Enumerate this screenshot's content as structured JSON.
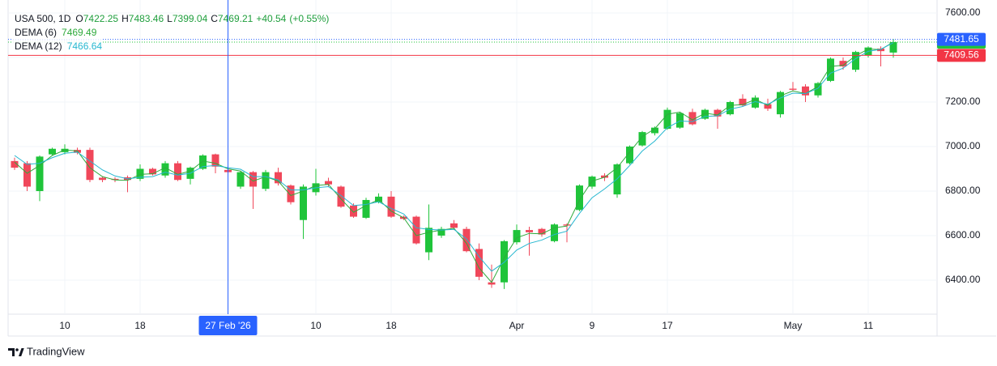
{
  "chart_data": {
    "type": "candlestick",
    "symbol": "USA 500, 1D",
    "ohlc_prefixes": [
      "O",
      "H",
      "L",
      "C"
    ],
    "change": {
      "value": 40.54,
      "label": "+40.54"
    },
    "change_pct": {
      "value": 0.55,
      "label": "(+0.55%)"
    },
    "categories": [
      null,
      null,
      null,
      null,
      "10",
      null,
      null,
      null,
      null,
      null,
      "18",
      null,
      null,
      null,
      null,
      null,
      null,
      null,
      null,
      null,
      null,
      null,
      null,
      null,
      "10",
      null,
      null,
      null,
      null,
      null,
      "18",
      null,
      null,
      null,
      null,
      null,
      null,
      null,
      null,
      null,
      "Apr",
      null,
      null,
      null,
      null,
      null,
      "9",
      null,
      null,
      null,
      null,
      null,
      "17",
      null,
      null,
      null,
      null,
      null,
      null,
      null,
      null,
      null,
      "May",
      null,
      null,
      null,
      null,
      null,
      "11",
      null,
      null
    ],
    "open": [
      6935,
      6925,
      6800,
      6965,
      6975,
      6985,
      6985,
      6860,
      6855,
      6862,
      6855,
      6900,
      6870,
      6925,
      6855,
      6900,
      6965,
      6895,
      6820,
      6885,
      6810,
      6885,
      6825,
      6670,
      6795,
      6845,
      6820,
      6735,
      6680,
      6750,
      6775,
      6685,
      6685,
      6525,
      6600,
      6655,
      6630,
      6540,
      6390,
      6390,
      6570,
      6625,
      6630,
      6575,
      6650,
      6715,
      6820,
      6870,
      6785,
      6925,
      7005,
      7060,
      7080,
      7085,
      7155,
      7125,
      7165,
      7145,
      7215,
      7175,
      7190,
      7145,
      7260,
      7270,
      7230,
      7295,
      7385,
      7345,
      7410,
      7440,
      7422.25
    ],
    "high": [
      6950,
      6935,
      6960,
      6995,
      7010,
      6995,
      6995,
      6865,
      6862,
      6870,
      6920,
      6905,
      6935,
      6935,
      6910,
      6965,
      6968,
      6900,
      6890,
      6890,
      6895,
      6905,
      6830,
      6830,
      6900,
      6860,
      6825,
      6745,
      6770,
      6790,
      6800,
      6690,
      6690,
      6740,
      6640,
      6670,
      6640,
      6565,
      6470,
      6580,
      6650,
      6640,
      6635,
      6655,
      6655,
      6830,
      6870,
      6880,
      6925,
      7005,
      7070,
      7090,
      7175,
      7155,
      7170,
      7170,
      7170,
      7205,
      7235,
      7230,
      7215,
      7250,
      7290,
      7280,
      7290,
      7400,
      7400,
      7430,
      7450,
      7450,
      7483.46
    ],
    "low": [
      6895,
      6800,
      6755,
      6960,
      6965,
      6965,
      6840,
      6840,
      6840,
      6795,
      6845,
      6870,
      6860,
      6845,
      6830,
      6895,
      6880,
      6875,
      6810,
      6720,
      6800,
      6825,
      6740,
      6585,
      6780,
      6820,
      6725,
      6680,
      6675,
      6745,
      6680,
      6670,
      6560,
      6490,
      6590,
      6625,
      6525,
      6400,
      6365,
      6360,
      6560,
      6510,
      6595,
      6570,
      6570,
      6710,
      6810,
      6845,
      6770,
      6920,
      7000,
      7050,
      7075,
      7080,
      7095,
      7120,
      7080,
      7140,
      7180,
      7170,
      7160,
      7130,
      7250,
      7200,
      7220,
      7290,
      7345,
      7335,
      7400,
      7360,
      7399.04
    ],
    "close": [
      6905,
      6820,
      6955,
      6990,
      6990,
      6972,
      6850,
      6850,
      6850,
      6850,
      6900,
      6875,
      6925,
      6850,
      6905,
      6960,
      6910,
      6885,
      6885,
      6820,
      6885,
      6835,
      6750,
      6820,
      6835,
      6830,
      6730,
      6685,
      6760,
      6775,
      6685,
      6675,
      6565,
      6635,
      6630,
      6635,
      6530,
      6415,
      6380,
      6575,
      6625,
      6615,
      6605,
      6650,
      6645,
      6825,
      6865,
      6860,
      6920,
      7000,
      7065,
      7085,
      7165,
      7150,
      7100,
      7165,
      7135,
      7200,
      7185,
      7220,
      7170,
      7245,
      7255,
      7230,
      7285,
      7395,
      7360,
      7425,
      7445,
      7428.67,
      7469.21
    ],
    "up_color": "#1fc43a",
    "down_color": "#f0475a",
    "series": [
      {
        "name": "DEMA (6)",
        "color": "#2faa3c",
        "values": [
          6930,
          6880,
          6915,
          6960,
          6985,
          6980,
          6905,
          6865,
          6850,
          6848,
          6875,
          6878,
          6905,
          6875,
          6890,
          6935,
          6925,
          6900,
          6890,
          6845,
          6865,
          6845,
          6780,
          6800,
          6825,
          6830,
          6765,
          6705,
          6735,
          6762,
          6710,
          6680,
          6600,
          6615,
          6625,
          6633,
          6565,
          6455,
          6390,
          6500,
          6590,
          6610,
          6608,
          6635,
          6643,
          6760,
          6845,
          6862,
          6905,
          6975,
          7045,
          7080,
          7145,
          7155,
          7120,
          7150,
          7142,
          7185,
          7188,
          7212,
          7185,
          7228,
          7250,
          7238,
          7270,
          7360,
          7365,
          7408,
          7438,
          7436,
          7469.49
        ]
      },
      {
        "name": "DEMA (12)",
        "color": "#26b7d0",
        "values": [
          6960,
          6920,
          6925,
          6950,
          6970,
          6975,
          6935,
          6895,
          6868,
          6855,
          6862,
          6865,
          6885,
          6872,
          6880,
          6910,
          6915,
          6905,
          6898,
          6865,
          6865,
          6850,
          6805,
          6805,
          6815,
          6820,
          6780,
          6735,
          6740,
          6752,
          6722,
          6697,
          6635,
          6628,
          6625,
          6628,
          6585,
          6505,
          6440,
          6480,
          6535,
          6565,
          6580,
          6605,
          6620,
          6700,
          6770,
          6810,
          6855,
          6915,
          6980,
          7025,
          7085,
          7115,
          7112,
          7135,
          7138,
          7168,
          7180,
          7202,
          7190,
          7218,
          7240,
          7238,
          7262,
          7330,
          7352,
          7395,
          7428,
          7437,
          7466.64
        ]
      }
    ],
    "ylim": [
      6247,
      7622
    ],
    "yticks": [
      {
        "value": 6400,
        "label": "6400.00"
      },
      {
        "value": 6600,
        "label": "6600.00"
      },
      {
        "value": 6800,
        "label": "6800.00"
      },
      {
        "value": 7000,
        "label": "7000.00"
      },
      {
        "value": 7200,
        "label": "7200.00"
      },
      {
        "value": 7400,
        "label": "7400.00"
      },
      {
        "value": 7600,
        "label": "7600.00"
      }
    ],
    "grid": true,
    "crosshair": {
      "index": 17,
      "label": "27 Feb '26",
      "y": {
        "value": 7481.65,
        "label": "7481.65"
      },
      "color": "#2962ff"
    },
    "price_lines": [
      {
        "value": 7409.56,
        "label": "7409.56",
        "color": "#f23645"
      }
    ],
    "brand": "TradingView"
  }
}
